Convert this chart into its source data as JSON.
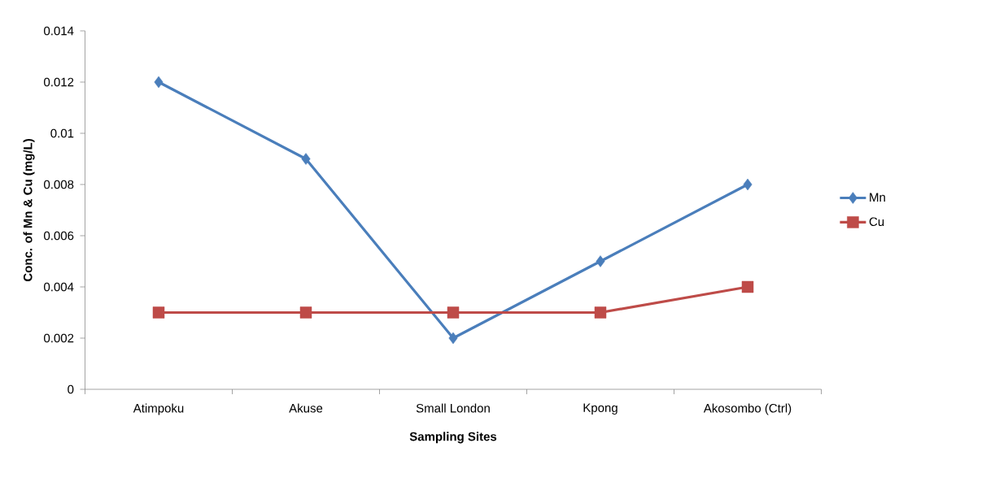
{
  "chart_data": {
    "type": "line",
    "xlabel": "Sampling Sites",
    "ylabel": "Conc. of Mn & Cu (mg/L)",
    "categories": [
      "Atimpoku",
      "Akuse",
      "Small London",
      "Kpong",
      "Akosombo (Ctrl)"
    ],
    "series": [
      {
        "name": "Mn",
        "color": "#4a7ebb",
        "marker": "diamond",
        "values": [
          0.012,
          0.009,
          0.002,
          0.005,
          0.008
        ]
      },
      {
        "name": "Cu",
        "color": "#be4b48",
        "marker": "square",
        "values": [
          0.003,
          0.003,
          0.003,
          0.003,
          0.004
        ]
      }
    ],
    "ylim": [
      0,
      0.014
    ],
    "yticks": [
      0,
      0.002,
      0.004,
      0.006,
      0.008,
      0.01,
      0.012,
      0.014
    ],
    "grid": false,
    "legend": "right",
    "line_style": "solid"
  }
}
